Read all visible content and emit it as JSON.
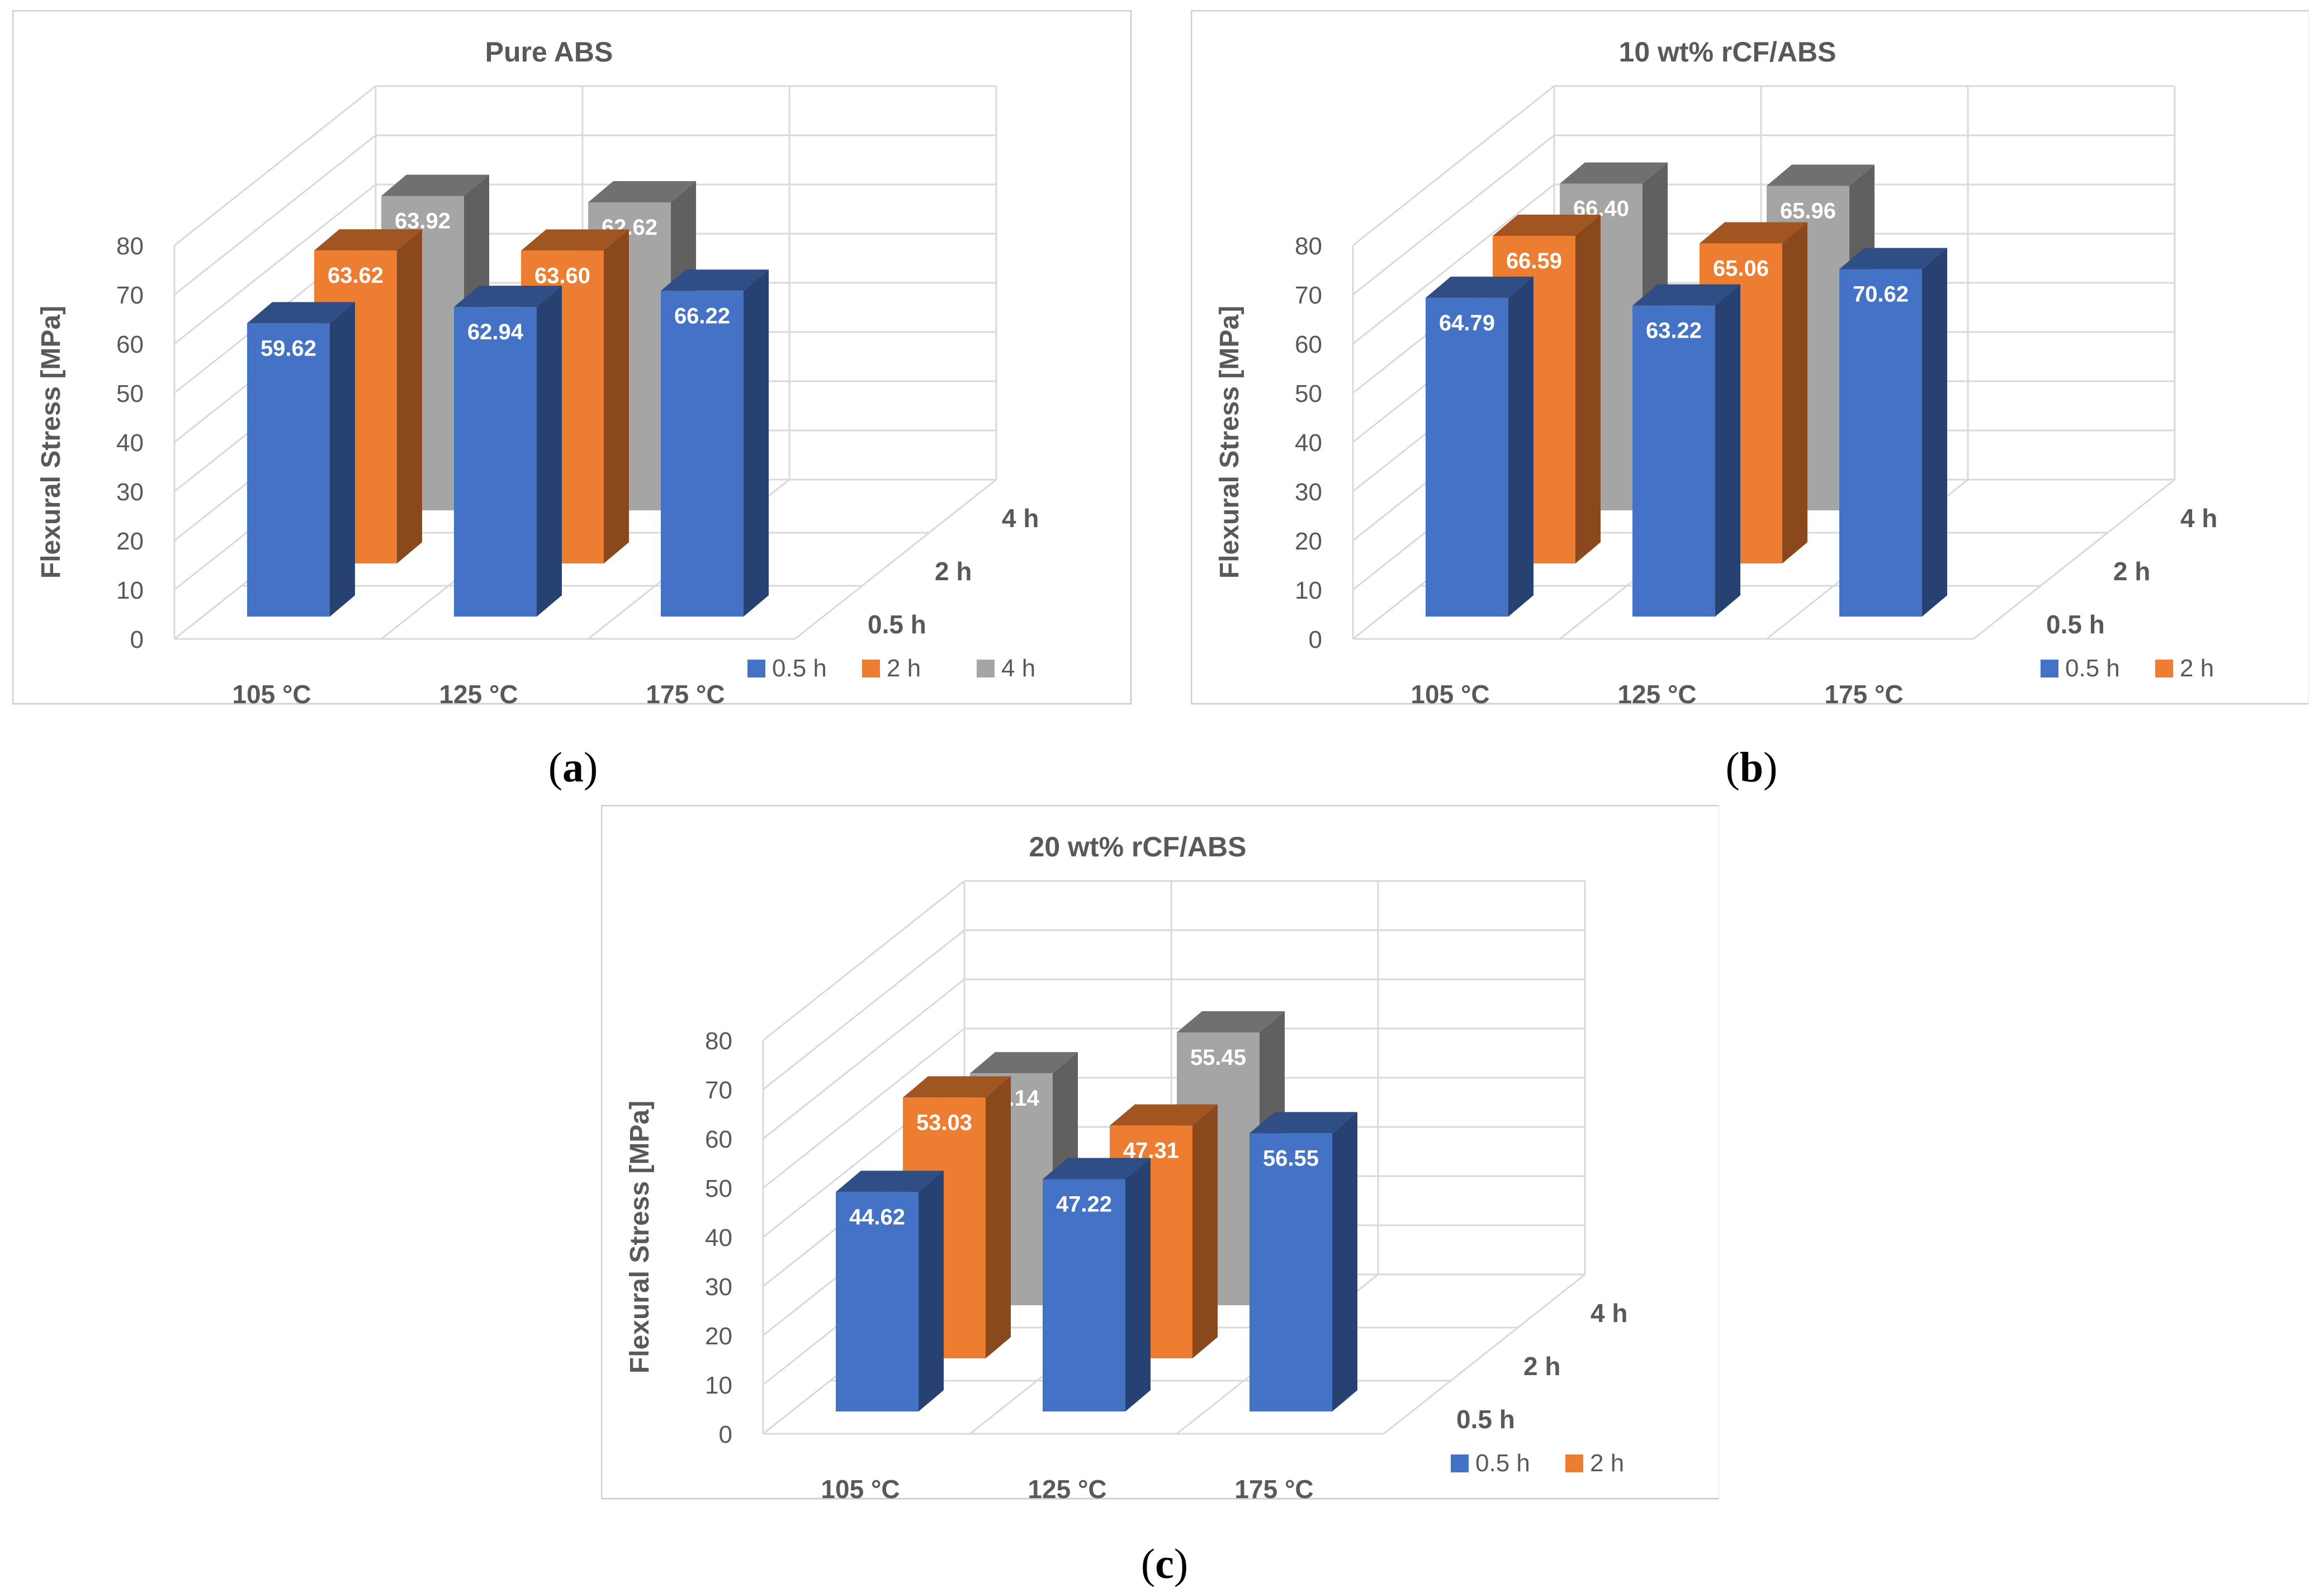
{
  "figure": {
    "captions": [
      {
        "open": "(",
        "letter": "a",
        "close": ")"
      },
      {
        "open": "(",
        "letter": "b",
        "close": ")"
      },
      {
        "open": "(",
        "letter": "c",
        "close": ")"
      }
    ]
  },
  "colors": {
    "0.5 h": "#4472C4",
    "2 h": "#ED7D31",
    "4 h": "#A5A5A5",
    "gridline": "#D9D9D9",
    "axis_text": "#595959",
    "border": "#D0D0D0"
  },
  "chart_data": [
    {
      "type": "bar",
      "subtype": "3d-column",
      "title": "Pure ABS",
      "ylabel": "Flexural Stress [MPa]",
      "ylim": [
        0,
        80
      ],
      "yticks": [
        "0",
        "10",
        "20",
        "30",
        "40",
        "50",
        "60",
        "70",
        "80"
      ],
      "categories": [
        "105 °C",
        "125 °C",
        "175 °C"
      ],
      "depth_labels": [
        "0.5 h",
        "2 h",
        "4 h"
      ],
      "legend": [
        "0.5 h",
        "2 h",
        "4 h"
      ],
      "legend_position": "bottom-right",
      "series": [
        {
          "name": "0.5 h",
          "values": [
            59.62,
            62.94,
            66.22
          ],
          "labels": [
            "59.62",
            "62.94",
            "66.22"
          ]
        },
        {
          "name": "2 h",
          "values": [
            63.62,
            63.6,
            null
          ],
          "labels": [
            "63.62",
            "63.60",
            ""
          ]
        },
        {
          "name": "4 h",
          "values": [
            63.92,
            62.62,
            null
          ],
          "labels": [
            "63.92",
            "62.62",
            ""
          ]
        }
      ]
    },
    {
      "type": "bar",
      "subtype": "3d-column",
      "title": "10 wt% rCF/ABS",
      "ylabel": "Flexural  Stress [MPa]",
      "ylim": [
        0,
        80
      ],
      "yticks": [
        "0",
        "10",
        "20",
        "30",
        "40",
        "50",
        "60",
        "70",
        "80"
      ],
      "categories": [
        "105 °C",
        "125 °C",
        "175 °C"
      ],
      "depth_labels": [
        "0.5 h",
        "2 h",
        "4 h"
      ],
      "legend": [
        "0.5 h",
        "2 h"
      ],
      "legend_position": "bottom-right",
      "series": [
        {
          "name": "0.5 h",
          "values": [
            64.79,
            63.22,
            70.62
          ],
          "labels": [
            "64.79",
            "63.22",
            "70.62"
          ]
        },
        {
          "name": "2 h",
          "values": [
            66.59,
            65.06,
            null
          ],
          "labels": [
            "66.59",
            "65.06",
            ""
          ]
        },
        {
          "name": "4 h",
          "values": [
            66.4,
            65.96,
            null
          ],
          "labels": [
            "66.40",
            "65.96",
            ""
          ]
        }
      ]
    },
    {
      "type": "bar",
      "subtype": "3d-column",
      "title": "20 wt% rCF/ABS",
      "ylabel": "Flexural Stress [MPa]",
      "ylim": [
        0,
        80
      ],
      "yticks": [
        "0",
        "10",
        "20",
        "30",
        "40",
        "50",
        "60",
        "70",
        "80"
      ],
      "categories": [
        "105 °C",
        "125 °C",
        "175 °C"
      ],
      "depth_labels": [
        "0.5 h",
        "2 h",
        "4 h"
      ],
      "legend": [
        "0.5 h",
        "2 h"
      ],
      "legend_position": "bottom-right",
      "series": [
        {
          "name": "0.5 h",
          "values": [
            44.62,
            47.22,
            56.55
          ],
          "labels": [
            "44.62",
            "47.22",
            "56.55"
          ]
        },
        {
          "name": "2 h",
          "values": [
            53.03,
            47.31,
            null
          ],
          "labels": [
            "53.03",
            "47.31",
            ""
          ]
        },
        {
          "name": "4 h",
          "values": [
            47.14,
            55.45,
            null
          ],
          "labels": [
            "47.14",
            "55.45",
            ""
          ]
        }
      ]
    }
  ]
}
